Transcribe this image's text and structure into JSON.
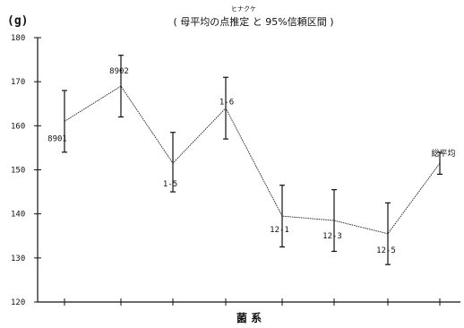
{
  "chart_data": {
    "type": "line",
    "title": "( 母平均の点推定 と 95%信頼区間 )",
    "title_annotation": "ヒナクケ",
    "unit": "(g)",
    "xlabel": "菌 系",
    "ylabel": "",
    "ylim": [
      120,
      180
    ],
    "yticks": [
      120,
      130,
      140,
      150,
      160,
      170,
      180
    ],
    "ytick_labels": [
      "120",
      "130",
      "140",
      "150",
      "160",
      "170",
      "180"
    ],
    "grid": false,
    "points": [
      {
        "label": "8901",
        "mean": 161,
        "lower": 154,
        "upper": 168
      },
      {
        "label": "8902",
        "mean": 169,
        "lower": 162,
        "upper": 176
      },
      {
        "label": "1-5",
        "mean": 151.5,
        "lower": 145,
        "upper": 158.5
      },
      {
        "label": "1-6",
        "mean": 164,
        "lower": 157,
        "upper": 171
      },
      {
        "label": "12-1",
        "mean": 139.5,
        "lower": 132.5,
        "upper": 146.5
      },
      {
        "label": "12-3",
        "mean": 138.5,
        "lower": 131.5,
        "upper": 145.5
      },
      {
        "label": "12-5",
        "mean": 135.5,
        "lower": 128.5,
        "upper": 142.5
      },
      {
        "label": "総平均",
        "mean": 151.5,
        "lower": 149,
        "upper": 154
      }
    ]
  }
}
